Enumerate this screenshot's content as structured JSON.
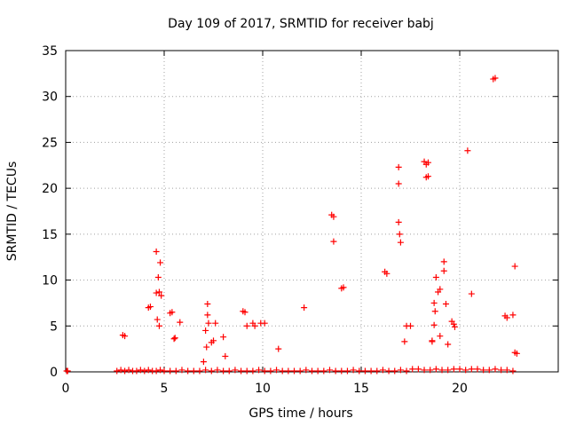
{
  "chart_data": {
    "type": "scatter",
    "title": "Day 109 of 2017, SRMTID for receiver babj",
    "xlabel": "GPS time / hours",
    "ylabel": "SRMTID / TECUs",
    "xlim": [
      0,
      25
    ],
    "ylim": [
      0,
      35
    ],
    "xticks": [
      0,
      5,
      10,
      15,
      20
    ],
    "yticks": [
      0,
      5,
      10,
      15,
      20,
      25,
      30,
      35
    ],
    "grid": true,
    "marker": "plus",
    "color": "#ff0000",
    "series": [
      {
        "x": [
          0.05,
          0.1,
          2.6,
          2.8,
          3.0,
          3.2,
          3.4,
          3.6,
          3.8,
          4.0,
          4.2,
          4.4,
          4.6,
          4.8,
          5.0,
          5.3,
          5.6,
          5.9,
          6.2,
          6.5,
          6.8,
          7.1,
          7.4,
          7.7,
          8.0,
          8.3,
          8.6,
          8.9,
          9.2,
          9.5,
          9.8,
          10.1,
          10.4,
          10.7,
          11.0,
          11.3,
          11.6,
          11.9,
          12.2,
          12.5,
          12.8,
          13.1,
          13.4,
          13.7,
          14.0,
          14.3,
          14.6,
          14.9,
          15.2,
          15.5,
          15.8,
          16.1,
          16.4,
          16.7,
          17.0,
          17.3,
          17.6,
          17.9,
          18.2,
          18.5,
          18.8,
          19.1,
          19.4,
          19.7,
          20.0,
          20.3,
          20.6,
          20.9,
          21.2,
          21.5,
          21.8,
          22.1,
          22.4,
          22.7,
          2.9,
          3.0,
          4.2,
          4.3,
          4.6,
          4.6,
          4.65,
          4.7,
          4.75,
          4.75,
          4.8,
          4.85,
          5.3,
          5.4,
          5.5,
          5.55,
          5.8,
          7.0,
          7.1,
          7.15,
          7.2,
          7.2,
          7.25,
          7.4,
          7.5,
          7.6,
          8.0,
          8.1,
          9.0,
          9.1,
          9.2,
          9.5,
          9.6,
          9.9,
          10.1,
          10.8,
          12.1,
          13.5,
          13.6,
          13.6,
          14.0,
          14.1,
          16.2,
          16.3,
          16.9,
          16.9,
          16.9,
          16.95,
          17.0,
          17.2,
          17.3,
          17.5,
          18.2,
          18.3,
          18.3,
          18.4,
          18.4,
          18.6,
          18.6,
          18.7,
          18.7,
          18.75,
          18.8,
          18.9,
          19.0,
          19.0,
          19.2,
          19.2,
          19.3,
          19.4,
          19.6,
          19.7,
          19.75,
          20.4,
          20.6,
          21.7,
          21.8,
          22.3,
          22.4,
          22.7,
          22.8,
          22.8,
          22.9
        ],
        "y": [
          0.1,
          0.1,
          0.1,
          0.2,
          0.1,
          0.2,
          0.1,
          0.1,
          0.2,
          0.1,
          0.2,
          0.1,
          0.1,
          0.2,
          0.1,
          0.1,
          0.1,
          0.2,
          0.1,
          0.1,
          0.1,
          0.2,
          0.1,
          0.2,
          0.1,
          0.1,
          0.2,
          0.1,
          0.1,
          0.1,
          0.2,
          0.1,
          0.1,
          0.2,
          0.1,
          0.1,
          0.1,
          0.1,
          0.2,
          0.1,
          0.1,
          0.1,
          0.2,
          0.1,
          0.1,
          0.1,
          0.2,
          0.1,
          0.1,
          0.1,
          0.1,
          0.2,
          0.1,
          0.1,
          0.2,
          0.1,
          0.3,
          0.3,
          0.2,
          0.2,
          0.3,
          0.2,
          0.2,
          0.3,
          0.3,
          0.2,
          0.3,
          0.3,
          0.2,
          0.2,
          0.3,
          0.2,
          0.2,
          0.1,
          4.0,
          3.9,
          7.0,
          7.1,
          13.1,
          8.6,
          5.7,
          10.3,
          8.7,
          5.0,
          11.9,
          8.3,
          6.4,
          6.5,
          3.6,
          3.7,
          5.4,
          1.1,
          4.5,
          2.7,
          7.4,
          6.2,
          5.3,
          3.2,
          3.4,
          5.3,
          3.8,
          1.7,
          6.6,
          6.5,
          5.0,
          5.3,
          5.0,
          5.3,
          5.3,
          2.5,
          7.0,
          17.1,
          16.9,
          14.2,
          9.1,
          9.2,
          10.9,
          10.7,
          22.3,
          20.5,
          16.3,
          15.0,
          14.1,
          3.3,
          5.0,
          5.0,
          22.9,
          22.6,
          21.2,
          22.8,
          21.3,
          3.4,
          3.3,
          5.1,
          7.5,
          6.6,
          10.3,
          8.7,
          3.9,
          9.0,
          11.0,
          12.0,
          7.4,
          3.0,
          5.5,
          5.2,
          4.9,
          24.1,
          8.5,
          31.9,
          32.0,
          6.1,
          5.9,
          6.2,
          11.5,
          2.1,
          2.0
        ]
      }
    ]
  }
}
